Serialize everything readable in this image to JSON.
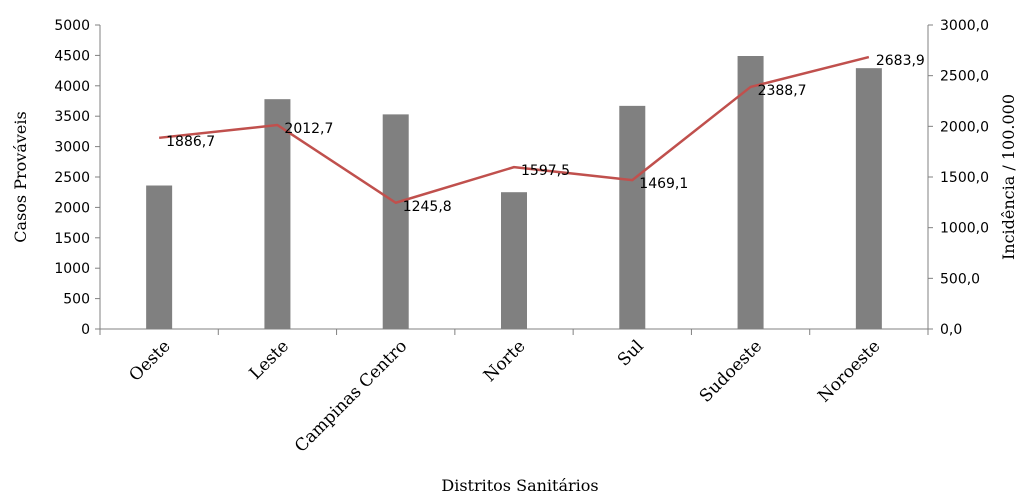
{
  "chart_data": {
    "type": "bar",
    "categories": [
      "Oeste",
      "Leste",
      "Campinas Centro",
      "Norte",
      "Sul",
      "Sudoeste",
      "Noroeste"
    ],
    "series": [
      {
        "type": "bar",
        "axis": "left",
        "values": [
          2360,
          3780,
          3530,
          2250,
          3670,
          4490,
          4290
        ],
        "color": "#808080"
      },
      {
        "type": "line",
        "axis": "right",
        "values": [
          1886.7,
          2012.7,
          1245.8,
          1597.5,
          1469.1,
          2388.7,
          2683.9
        ],
        "labels": [
          "1886,7",
          "2012,7",
          "1245,8",
          "1597,5",
          "1469,1",
          "2388,7",
          "2683,9"
        ],
        "color": "#c0504d"
      }
    ],
    "xlabel": "Distritos Sanitários",
    "ylabel": "Casos Prováveis",
    "y2label": "Incidência / 100.000",
    "ylim": [
      0,
      5000
    ],
    "y2lim": [
      0,
      3000
    ],
    "yticks": [
      "0",
      "500",
      "1000",
      "1500",
      "2000",
      "2500",
      "3000",
      "3500",
      "4000",
      "4500",
      "5000"
    ],
    "y2ticks": [
      "0,0",
      "500,0",
      "1000,0",
      "1500,0",
      "2000,0",
      "2500,0",
      "3000,0"
    ],
    "grid": false,
    "legend": "none"
  }
}
